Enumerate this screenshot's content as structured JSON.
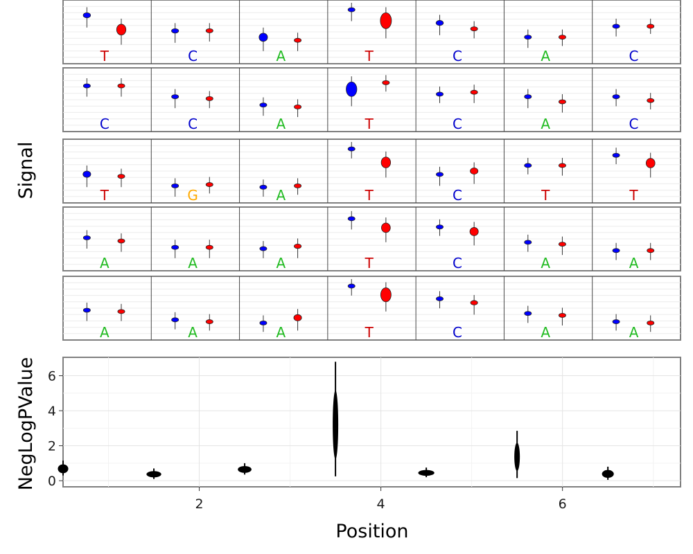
{
  "colors": {
    "group_a": "#0000ff",
    "group_b": "#ff0000",
    "stat": "#000000",
    "A": "#22bb22",
    "C": "#0000cc",
    "G": "#ffaa00",
    "T": "#cc0000"
  },
  "chart_data": [
    {
      "type": "violin",
      "ylabel": "Signal",
      "panel_rows": 5,
      "positions_per_row": 7,
      "series": [
        {
          "color": "blue"
        },
        {
          "color": "red"
        }
      ],
      "rows": [
        {
          "bases": [
            "T",
            "C",
            "A",
            "T",
            "C",
            "A",
            "C"
          ],
          "blue": [
            [
              0.8,
              0.72
            ],
            [
              0.55,
              0.48
            ],
            [
              0.48,
              0.35
            ],
            [
              0.88,
              0.82
            ],
            [
              0.68,
              0.6
            ],
            [
              0.45,
              0.4
            ],
            [
              0.62,
              0.58
            ]
          ],
          "red": [
            [
              0.62,
              0.45
            ],
            [
              0.55,
              0.5
            ],
            [
              0.4,
              0.35
            ],
            [
              0.8,
              0.55
            ],
            [
              0.58,
              0.55
            ],
            [
              0.45,
              0.43
            ],
            [
              0.62,
              0.62
            ]
          ]
        },
        {
          "bases": [
            "C",
            "C",
            "A",
            "T",
            "C",
            "A",
            "C"
          ],
          "blue": [
            [
              0.75,
              0.7
            ],
            [
              0.58,
              0.52
            ],
            [
              0.45,
              0.4
            ],
            [
              0.78,
              0.55
            ],
            [
              0.62,
              0.6
            ],
            [
              0.58,
              0.52
            ],
            [
              0.58,
              0.55
            ]
          ],
          "red": [
            [
              0.75,
              0.7
            ],
            [
              0.55,
              0.52
            ],
            [
              0.42,
              0.38
            ],
            [
              0.8,
              0.78
            ],
            [
              0.65,
              0.6
            ],
            [
              0.5,
              0.45
            ],
            [
              0.52,
              0.5
            ]
          ]
        },
        {
          "bases": [
            "T",
            "G",
            "A",
            "T",
            "C",
            "T",
            "T"
          ],
          "blue": [
            [
              0.5,
              0.4
            ],
            [
              0.3,
              0.25
            ],
            [
              0.28,
              0.25
            ],
            [
              0.88,
              0.85
            ],
            [
              0.48,
              0.42
            ],
            [
              0.62,
              0.6
            ],
            [
              0.78,
              0.76
            ]
          ],
          "red": [
            [
              0.45,
              0.4
            ],
            [
              0.32,
              0.3
            ],
            [
              0.3,
              0.28
            ],
            [
              0.72,
              0.55
            ],
            [
              0.55,
              0.45
            ],
            [
              0.62,
              0.58
            ],
            [
              0.7,
              0.55
            ]
          ]
        },
        {
          "bases": [
            "A",
            "A",
            "A",
            "T",
            "C",
            "A",
            "A"
          ],
          "blue": [
            [
              0.55,
              0.5
            ],
            [
              0.4,
              0.35
            ],
            [
              0.38,
              0.35
            ],
            [
              0.85,
              0.8
            ],
            [
              0.72,
              0.7
            ],
            [
              0.48,
              0.45
            ],
            [
              0.35,
              0.32
            ]
          ],
          "red": [
            [
              0.5,
              0.45
            ],
            [
              0.4,
              0.35
            ],
            [
              0.42,
              0.35
            ],
            [
              0.75,
              0.6
            ],
            [
              0.68,
              0.55
            ],
            [
              0.45,
              0.4
            ],
            [
              0.35,
              0.32
            ]
          ]
        },
        {
          "bases": [
            "A",
            "A",
            "A",
            "T",
            "C",
            "A",
            "A"
          ],
          "blue": [
            [
              0.5,
              0.45
            ],
            [
              0.35,
              0.32
            ],
            [
              0.3,
              0.28
            ],
            [
              0.88,
              0.85
            ],
            [
              0.68,
              0.65
            ],
            [
              0.45,
              0.42
            ],
            [
              0.32,
              0.3
            ]
          ],
          "red": [
            [
              0.48,
              0.45
            ],
            [
              0.32,
              0.3
            ],
            [
              0.4,
              0.3
            ],
            [
              0.82,
              0.6
            ],
            [
              0.62,
              0.55
            ],
            [
              0.42,
              0.38
            ],
            [
              0.3,
              0.28
            ]
          ]
        }
      ]
    },
    {
      "type": "violin",
      "xlabel": "Position",
      "ylabel": "NegLogPValue",
      "xlim": [
        0.5,
        7.3
      ],
      "ylim": [
        -0.35,
        7.05
      ],
      "x_ticks": [
        2,
        4,
        6
      ],
      "y_ticks": [
        0,
        2,
        4,
        6
      ],
      "grid": true,
      "series": [
        {
          "color": "black",
          "points": [
            {
              "x": 1,
              "min": 0.3,
              "max": 1.15
            },
            {
              "x": 2,
              "min": 0.1,
              "max": 0.7
            },
            {
              "x": 3,
              "min": 0.35,
              "max": 1.0
            },
            {
              "x": 4,
              "min": 0.25,
              "max": 6.8
            },
            {
              "x": 5,
              "min": 0.2,
              "max": 0.75
            },
            {
              "x": 6,
              "min": 0.15,
              "max": 2.85
            },
            {
              "x": 7,
              "min": 0.05,
              "max": 0.8
            }
          ]
        }
      ]
    }
  ]
}
